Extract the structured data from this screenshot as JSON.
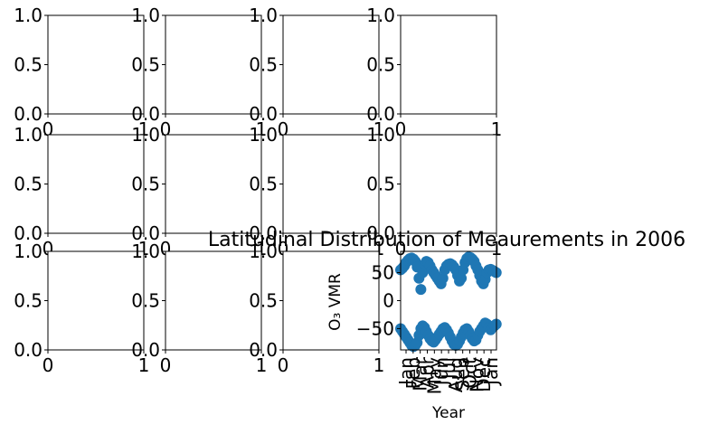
{
  "chart_data": [
    {
      "type": "scatter",
      "panel": "row1-col1",
      "x": [],
      "y": [],
      "xlim": [
        0,
        1
      ],
      "ylim": [
        0,
        1
      ],
      "xticks": [
        "0",
        "1"
      ],
      "yticks": [
        "0.0",
        "0.5",
        "1.0"
      ],
      "title": "",
      "xlabel": "",
      "ylabel": ""
    },
    {
      "type": "scatter",
      "panel": "row1-col2",
      "x": [],
      "y": [],
      "xlim": [
        0,
        1
      ],
      "ylim": [
        0,
        1
      ],
      "xticks": [
        "0",
        "1"
      ],
      "yticks": [
        "0.0",
        "0.5",
        "1.0"
      ],
      "title": "",
      "xlabel": "",
      "ylabel": ""
    },
    {
      "type": "scatter",
      "panel": "row1-col3",
      "x": [],
      "y": [],
      "xlim": [
        0,
        1
      ],
      "ylim": [
        0,
        1
      ],
      "xticks": [
        "0",
        "1"
      ],
      "yticks": [
        "0.0",
        "0.5",
        "1.0"
      ],
      "title": "",
      "xlabel": "",
      "ylabel": ""
    },
    {
      "type": "scatter",
      "panel": "row1-col4",
      "x": [],
      "y": [],
      "xlim": [
        0,
        1
      ],
      "ylim": [
        0,
        1
      ],
      "xticks": [
        "0",
        "1"
      ],
      "yticks": [
        "0.0",
        "0.5",
        "1.0"
      ],
      "title": "",
      "xlabel": "",
      "ylabel": ""
    },
    {
      "type": "scatter",
      "panel": "row2-col1",
      "x": [],
      "y": [],
      "xlim": [
        0,
        1
      ],
      "ylim": [
        0,
        1
      ],
      "xticks": [
        "0",
        "1"
      ],
      "yticks": [
        "0.0",
        "0.5",
        "1.0"
      ],
      "title": "",
      "xlabel": "",
      "ylabel": ""
    },
    {
      "type": "scatter",
      "panel": "row2-col2",
      "x": [],
      "y": [],
      "xlim": [
        0,
        1
      ],
      "ylim": [
        0,
        1
      ],
      "xticks": [
        "0",
        "1"
      ],
      "yticks": [
        "0.0",
        "0.5",
        "1.0"
      ],
      "title": "",
      "xlabel": "",
      "ylabel": ""
    },
    {
      "type": "scatter",
      "panel": "row2-col3",
      "x": [],
      "y": [],
      "xlim": [
        0,
        1
      ],
      "ylim": [
        0,
        1
      ],
      "xticks": [
        "0",
        "1"
      ],
      "yticks": [
        "0.0",
        "0.5",
        "1.0"
      ],
      "title": "",
      "xlabel": "",
      "ylabel": ""
    },
    {
      "type": "scatter",
      "panel": "row2-col4",
      "x": [],
      "y": [],
      "xlim": [
        0,
        1
      ],
      "ylim": [
        0,
        1
      ],
      "xticks": [
        "0",
        "1"
      ],
      "yticks": [
        "0.0",
        "0.5",
        "1.0"
      ],
      "title": "",
      "xlabel": "",
      "ylabel": ""
    },
    {
      "type": "scatter",
      "panel": "row3-col1",
      "x": [],
      "y": [],
      "xlim": [
        0,
        1
      ],
      "ylim": [
        0,
        1
      ],
      "xticks": [
        "0",
        "1"
      ],
      "yticks": [
        "0.0",
        "0.5",
        "1.0"
      ],
      "title": "",
      "xlabel": "",
      "ylabel": ""
    },
    {
      "type": "scatter",
      "panel": "row3-col2",
      "x": [],
      "y": [],
      "xlim": [
        0,
        1
      ],
      "ylim": [
        0,
        1
      ],
      "xticks": [
        "0",
        "1"
      ],
      "yticks": [
        "0.0",
        "0.5",
        "1.0"
      ],
      "title": "",
      "xlabel": "",
      "ylabel": ""
    },
    {
      "type": "scatter",
      "panel": "row3-col3",
      "x": [],
      "y": [],
      "xlim": [
        0,
        1
      ],
      "ylim": [
        0,
        1
      ],
      "xticks": [
        "0",
        "1"
      ],
      "yticks": [
        "0.0",
        "0.5",
        "1.0"
      ],
      "title": "",
      "xlabel": "",
      "ylabel": ""
    },
    {
      "type": "scatter",
      "panel": "row3-col4",
      "title": "Latitudinal Distribution of Meaurements in 2006",
      "xlabel": "Year",
      "ylabel": "O₃ VMR",
      "color": "#1f77b4",
      "xticks": [
        "Jan",
        "Feb",
        "Mar",
        "Apr",
        "May",
        "Jun",
        "Jul",
        "Aug",
        "Sep",
        "Oct",
        "Nov",
        "Dec",
        "Jan"
      ],
      "xlim": [
        "2006-01-01",
        "2007-01-01"
      ],
      "yticks": [
        "50",
        "0",
        "−50"
      ],
      "ylim": [
        -88,
        88
      ],
      "grid": false,
      "series": [
        {
          "x": [
            "2006-01-01",
            "2006-01-08",
            "2006-01-15",
            "2006-01-22",
            "2006-01-29",
            "2006-02-05",
            "2006-02-12",
            "2006-02-19",
            "2006-02-26",
            "2006-03-05",
            "2006-03-12",
            "2006-03-19",
            "2006-03-26",
            "2006-04-02",
            "2006-04-09",
            "2006-04-16",
            "2006-04-23",
            "2006-04-30",
            "2006-05-07",
            "2006-05-14",
            "2006-05-21",
            "2006-05-28",
            "2006-06-04",
            "2006-06-11",
            "2006-06-18",
            "2006-06-25",
            "2006-07-02",
            "2006-07-09",
            "2006-07-16",
            "2006-07-23",
            "2006-07-30",
            "2006-08-06",
            "2006-08-13",
            "2006-08-20",
            "2006-08-27",
            "2006-09-03",
            "2006-09-10",
            "2006-09-17",
            "2006-09-24",
            "2006-10-01",
            "2006-10-08",
            "2006-10-15",
            "2006-10-22",
            "2006-10-29",
            "2006-11-05",
            "2006-11-12",
            "2006-11-19",
            "2006-11-26",
            "2006-12-03",
            "2006-12-10",
            "2006-12-17",
            "2006-12-24",
            "2006-12-31"
          ],
          "y_upper": [
            55,
            58,
            62,
            68,
            72,
            75,
            76,
            74,
            70,
            60,
            40,
            20,
            50,
            65,
            70,
            68,
            62,
            55,
            50,
            45,
            40,
            35,
            30,
            40,
            55,
            62,
            65,
            66,
            64,
            60,
            55,
            45,
            35,
            40,
            55,
            68,
            75,
            78,
            77,
            74,
            70,
            62,
            55,
            45,
            35,
            30,
            38,
            50,
            55,
            56,
            54,
            52,
            50
          ],
          "y_lower": [
            -50,
            -55,
            -60,
            -65,
            -70,
            -75,
            -80,
            -82,
            -80,
            -75,
            -62,
            -50,
            -45,
            -48,
            -55,
            -62,
            -68,
            -72,
            -74,
            -70,
            -65,
            -60,
            -55,
            -50,
            -48,
            -52,
            -58,
            -65,
            -72,
            -78,
            -80,
            -78,
            -72,
            -65,
            -58,
            -52,
            -50,
            -55,
            -62,
            -68,
            -72,
            -70,
            -62,
            -55,
            -50,
            -45,
            -40,
            -42,
            -48,
            -52,
            -48,
            -45,
            -42
          ]
        }
      ]
    }
  ]
}
